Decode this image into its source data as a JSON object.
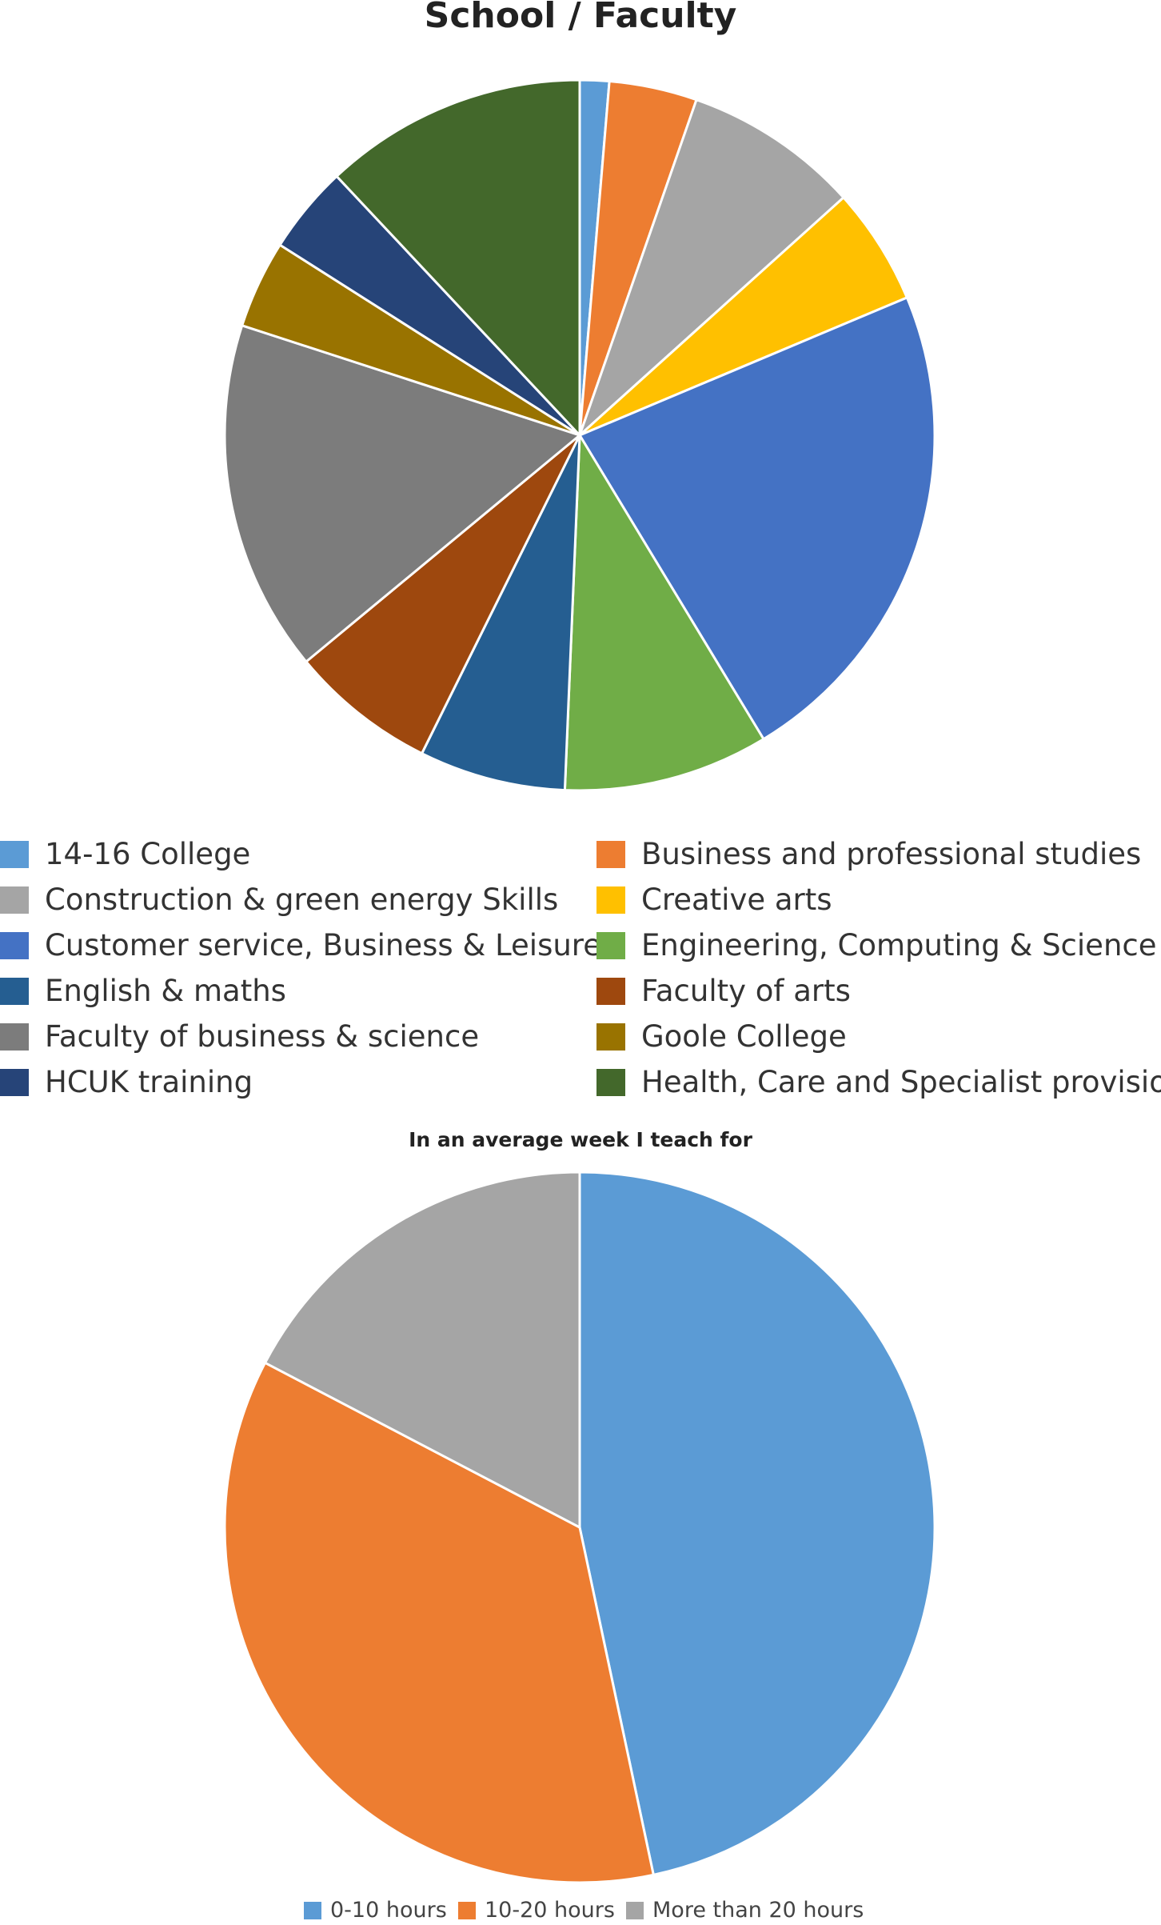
{
  "chart_data": [
    {
      "type": "pie",
      "title": "School / Faculty",
      "legend_position": "bottom",
      "categories": [
        "14-16 College",
        "Business and professional studies",
        "Construction & green energy Skills",
        "Creative arts",
        "Customer service, Business & Leisure",
        "Engineering, Computing & Science",
        "English & maths",
        "Faculty of arts",
        "Faculty of business & science",
        "Goole College",
        "HCUK training",
        "Health, Care and Specialist provision"
      ],
      "values": [
        1,
        3,
        6,
        4,
        17,
        7,
        5,
        5,
        12,
        3,
        3,
        9
      ],
      "colors": [
        "#5B9BD5",
        "#ED7D31",
        "#A5A5A5",
        "#FFC000",
        "#4472C4",
        "#70AD47",
        "#255E91",
        "#9E480E",
        "#7C7C7C",
        "#997300",
        "#264478",
        "#43682B"
      ]
    },
    {
      "type": "pie",
      "title": "In an average week I teach for",
      "legend_position": "bottom",
      "categories": [
        "0-10 hours",
        "10-20 hours",
        "More than 20 hours"
      ],
      "values": [
        35,
        27,
        13
      ],
      "colors": [
        "#5B9BD5",
        "#ED7D31",
        "#A5A5A5"
      ]
    }
  ]
}
